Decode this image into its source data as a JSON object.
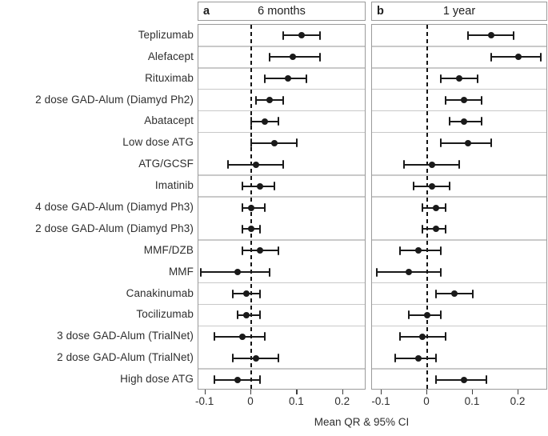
{
  "chart_data": {
    "type": "scatter",
    "variant": "forest-plot",
    "title": "",
    "xlabel": "Mean QR & 95% CI",
    "legend": "none",
    "grid": "row-separators-only",
    "zero_line": {
      "x": 0,
      "style": "dashed"
    },
    "categories": [
      "Teplizumab",
      "Alefacept",
      "Rituximab",
      "2 dose GAD-Alum (Diamyd Ph2)",
      "Abatacept",
      "Low dose ATG",
      "ATG/GCSF",
      "Imatinib",
      "4 dose GAD-Alum (Diamyd Ph3)",
      "2 dose GAD-Alum (Diamyd Ph3)",
      "MMF/DZB",
      "MMF",
      "Canakinumab",
      "Tocilizumab",
      "3 dose GAD-Alum (TrialNet)",
      "2 dose GAD-Alum (TrialNet)",
      "High dose ATG"
    ],
    "row_groups": [
      1,
      1,
      1,
      1,
      1,
      2,
      1,
      2,
      2,
      1,
      1,
      2,
      1
    ],
    "panels": [
      {
        "tag": "a",
        "title": "6 months",
        "xlim": [
          -0.115,
          0.251
        ],
        "xticks": [
          -0.1,
          0,
          0.1,
          0.2
        ],
        "xtick_labels": [
          "-0.1",
          "0",
          "0.1",
          "0.2"
        ],
        "series": [
          {
            "mean": 0.11,
            "lo": 0.07,
            "hi": 0.15
          },
          {
            "mean": 0.09,
            "lo": 0.04,
            "hi": 0.15
          },
          {
            "mean": 0.08,
            "lo": 0.03,
            "hi": 0.12
          },
          {
            "mean": 0.04,
            "lo": 0.01,
            "hi": 0.07
          },
          {
            "mean": 0.03,
            "lo": 0.0,
            "hi": 0.06
          },
          {
            "mean": 0.05,
            "lo": 0.0,
            "hi": 0.1
          },
          {
            "mean": 0.01,
            "lo": -0.05,
            "hi": 0.07
          },
          {
            "mean": 0.02,
            "lo": -0.02,
            "hi": 0.05
          },
          {
            "mean": 0.0,
            "lo": -0.02,
            "hi": 0.03
          },
          {
            "mean": 0.0,
            "lo": -0.02,
            "hi": 0.02
          },
          {
            "mean": 0.02,
            "lo": -0.02,
            "hi": 0.06
          },
          {
            "mean": -0.03,
            "lo": -0.11,
            "hi": 0.04
          },
          {
            "mean": -0.01,
            "lo": -0.04,
            "hi": 0.02
          },
          {
            "mean": -0.01,
            "lo": -0.03,
            "hi": 0.02
          },
          {
            "mean": -0.02,
            "lo": -0.08,
            "hi": 0.03
          },
          {
            "mean": 0.01,
            "lo": -0.04,
            "hi": 0.06
          },
          {
            "mean": -0.03,
            "lo": -0.08,
            "hi": 0.02
          }
        ]
      },
      {
        "tag": "b",
        "title": "1 year",
        "xlim": [
          -0.121,
          0.265
        ],
        "xticks": [
          -0.1,
          0,
          0.1,
          0.2
        ],
        "xtick_labels": [
          "-0.1",
          "0",
          "0.1",
          "0.2"
        ],
        "series": [
          {
            "mean": 0.14,
            "lo": 0.09,
            "hi": 0.19
          },
          {
            "mean": 0.2,
            "lo": 0.14,
            "hi": 0.25
          },
          {
            "mean": 0.07,
            "lo": 0.03,
            "hi": 0.11
          },
          {
            "mean": 0.08,
            "lo": 0.04,
            "hi": 0.12
          },
          {
            "mean": 0.08,
            "lo": 0.05,
            "hi": 0.12
          },
          {
            "mean": 0.09,
            "lo": 0.03,
            "hi": 0.14
          },
          {
            "mean": 0.01,
            "lo": -0.05,
            "hi": 0.07
          },
          {
            "mean": 0.01,
            "lo": -0.03,
            "hi": 0.05
          },
          {
            "mean": 0.02,
            "lo": -0.01,
            "hi": 0.04
          },
          {
            "mean": 0.02,
            "lo": -0.01,
            "hi": 0.04
          },
          {
            "mean": -0.02,
            "lo": -0.06,
            "hi": 0.03
          },
          {
            "mean": -0.04,
            "lo": -0.11,
            "hi": 0.03
          },
          {
            "mean": 0.06,
            "lo": 0.02,
            "hi": 0.1
          },
          {
            "mean": 0.0,
            "lo": -0.04,
            "hi": 0.03
          },
          {
            "mean": -0.01,
            "lo": -0.06,
            "hi": 0.04
          },
          {
            "mean": -0.02,
            "lo": -0.07,
            "hi": 0.02
          },
          {
            "mean": 0.08,
            "lo": 0.02,
            "hi": 0.13
          }
        ]
      }
    ],
    "colors": {
      "marker": "#1a1a1a",
      "panel_border": "#9b9b9b",
      "separator": "#c9c9c9",
      "text": "#2e2e2e"
    }
  }
}
